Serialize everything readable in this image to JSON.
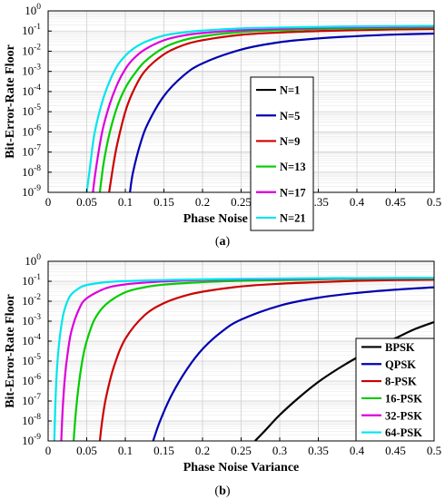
{
  "chart_data": [
    {
      "type": "line",
      "panel_label": "(a)",
      "panel_label_letter": "a",
      "xlabel": "Phase Noise Variance",
      "ylabel": "Bit-Error-Rate Floor",
      "xlim": [
        0,
        0.5
      ],
      "ylim_log10": [
        -9,
        0
      ],
      "yscale": "log",
      "x_ticks": [
        "0",
        "0.05",
        "0.1",
        "0.15",
        "0.2",
        "0.25",
        "0.3",
        "0.35",
        "0.4",
        "0.45",
        "0.5"
      ],
      "y_tick_exponents": [
        "0",
        "-1",
        "-2",
        "-3",
        "-4",
        "-5",
        "-6",
        "-7",
        "-8",
        "-9"
      ],
      "y_tick_base": "10",
      "grid": true,
      "legend_position": "center-right",
      "series": [
        {
          "name": "N=1",
          "color": "#000000",
          "x": [],
          "y": []
        },
        {
          "name": "N=5",
          "color": "#0000b0",
          "x": [
            0.106,
            0.11,
            0.12,
            0.13,
            0.15,
            0.175,
            0.2,
            0.25,
            0.3,
            0.35,
            0.4,
            0.45,
            0.5
          ],
          "y": [
            1e-09,
            1e-08,
            3e-07,
            3e-06,
            6e-05,
            0.0006,
            0.0025,
            0.012,
            0.028,
            0.043,
            0.056,
            0.067,
            0.075
          ]
        },
        {
          "name": "N=9",
          "color": "#cc0000",
          "x": [
            0.079,
            0.085,
            0.09,
            0.1,
            0.11,
            0.125,
            0.15,
            0.175,
            0.2,
            0.25,
            0.3,
            0.35,
            0.4,
            0.45,
            0.5
          ],
          "y": [
            1e-09,
            3e-08,
            3e-07,
            1e-05,
            0.0001,
            0.001,
            0.007,
            0.02,
            0.035,
            0.065,
            0.085,
            0.1,
            0.11,
            0.12,
            0.125
          ]
        },
        {
          "name": "N=13",
          "color": "#00cc00",
          "x": [
            0.067,
            0.072,
            0.08,
            0.09,
            0.1,
            0.11,
            0.125,
            0.15,
            0.175,
            0.2,
            0.25,
            0.3,
            0.35,
            0.4,
            0.45,
            0.5
          ],
          "y": [
            1e-09,
            3e-08,
            1e-06,
            2e-05,
            0.00015,
            0.0006,
            0.003,
            0.015,
            0.035,
            0.055,
            0.09,
            0.11,
            0.125,
            0.135,
            0.145,
            0.15
          ]
        },
        {
          "name": "N=17",
          "color": "#dd00dd",
          "x": [
            0.058,
            0.062,
            0.07,
            0.08,
            0.09,
            0.1,
            0.11,
            0.125,
            0.15,
            0.175,
            0.2,
            0.25,
            0.3,
            0.35,
            0.4,
            0.45,
            0.5
          ],
          "y": [
            1e-09,
            1.5e-08,
            1e-06,
            2.5e-05,
            0.00025,
            0.0013,
            0.004,
            0.012,
            0.035,
            0.06,
            0.08,
            0.11,
            0.13,
            0.145,
            0.155,
            0.16,
            0.165
          ]
        },
        {
          "name": "N=21",
          "color": "#00e5ee",
          "x": [
            0.05,
            0.054,
            0.06,
            0.07,
            0.08,
            0.09,
            0.1,
            0.11,
            0.125,
            0.15,
            0.175,
            0.2,
            0.25,
            0.3,
            0.35,
            0.4,
            0.45,
            0.5
          ],
          "y": [
            1e-09,
            1.5e-08,
            8e-07,
            3e-05,
            0.00035,
            0.002,
            0.006,
            0.013,
            0.028,
            0.06,
            0.085,
            0.105,
            0.135,
            0.15,
            0.16,
            0.17,
            0.175,
            0.18
          ]
        }
      ]
    },
    {
      "type": "line",
      "panel_label": "(b)",
      "panel_label_letter": "b",
      "xlabel": "Phase Noise Variance",
      "ylabel": "Bit-Error-Rate Floor",
      "xlim": [
        0,
        0.5
      ],
      "ylim_log10": [
        -9,
        0
      ],
      "yscale": "log",
      "x_ticks": [
        "0",
        "0.05",
        "0.1",
        "0.15",
        "0.2",
        "0.25",
        "0.3",
        "0.35",
        "0.4",
        "0.45",
        "0.5"
      ],
      "y_tick_exponents": [
        "0",
        "-1",
        "-2",
        "-3",
        "-4",
        "-5",
        "-6",
        "-7",
        "-8",
        "-9"
      ],
      "y_tick_base": "10",
      "grid": true,
      "legend_position": "bottom-right",
      "series": [
        {
          "name": "BPSK",
          "color": "#000000",
          "x": [
            0.268,
            0.28,
            0.3,
            0.325,
            0.35,
            0.375,
            0.4,
            0.425,
            0.45,
            0.475,
            0.5
          ],
          "y": [
            1e-09,
            3e-09,
            2e-08,
            1.5e-07,
            9e-07,
            4e-06,
            1.5e-05,
            5e-05,
            0.00014,
            0.0004,
            0.0009
          ]
        },
        {
          "name": "QPSK",
          "color": "#0000b0",
          "x": [
            0.136,
            0.145,
            0.16,
            0.18,
            0.2,
            0.225,
            0.25,
            0.3,
            0.35,
            0.4,
            0.45,
            0.5
          ],
          "y": [
            1e-09,
            1e-08,
            2e-07,
            4e-06,
            4e-05,
            0.0003,
            0.0012,
            0.006,
            0.015,
            0.026,
            0.038,
            0.05
          ]
        },
        {
          "name": "8-PSK",
          "color": "#cc0000",
          "x": [
            0.067,
            0.07,
            0.075,
            0.085,
            0.1,
            0.125,
            0.15,
            0.175,
            0.2,
            0.25,
            0.3,
            0.35,
            0.4,
            0.45,
            0.5
          ],
          "y": [
            1e-09,
            1e-08,
            1.5e-07,
            5e-06,
            0.00013,
            0.002,
            0.008,
            0.018,
            0.03,
            0.055,
            0.075,
            0.09,
            0.105,
            0.115,
            0.12
          ]
        },
        {
          "name": "16-PSK",
          "color": "#00cc00",
          "x": [
            0.033,
            0.036,
            0.04,
            0.045,
            0.05,
            0.06,
            0.075,
            0.1,
            0.125,
            0.15,
            0.2,
            0.25,
            0.3,
            0.35,
            0.4,
            0.5
          ],
          "y": [
            1e-09,
            3e-08,
            8e-07,
            1.5e-05,
            0.0001,
            0.0012,
            0.007,
            0.028,
            0.05,
            0.068,
            0.09,
            0.105,
            0.115,
            0.125,
            0.132,
            0.14
          ]
        },
        {
          "name": "32-PSK",
          "color": "#dd00dd",
          "x": [
            0.017,
            0.019,
            0.022,
            0.025,
            0.03,
            0.04,
            0.05,
            0.075,
            0.1,
            0.125,
            0.15,
            0.2,
            0.3,
            0.4,
            0.5
          ],
          "y": [
            1e-09,
            5e-08,
            2e-06,
            2e-05,
            0.0003,
            0.004,
            0.014,
            0.045,
            0.07,
            0.085,
            0.098,
            0.115,
            0.13,
            0.14,
            0.145
          ]
        },
        {
          "name": "64-PSK",
          "color": "#00e5ee",
          "x": [
            0.008,
            0.0095,
            0.011,
            0.013,
            0.016,
            0.02,
            0.025,
            0.03,
            0.04,
            0.05,
            0.075,
            0.1,
            0.15,
            0.2,
            0.3,
            0.4,
            0.5
          ],
          "y": [
            1e-09,
            1e-07,
            2e-06,
            2.5e-05,
            0.0003,
            0.0025,
            0.01,
            0.022,
            0.045,
            0.065,
            0.09,
            0.102,
            0.115,
            0.125,
            0.138,
            0.145,
            0.15
          ]
        }
      ]
    }
  ]
}
